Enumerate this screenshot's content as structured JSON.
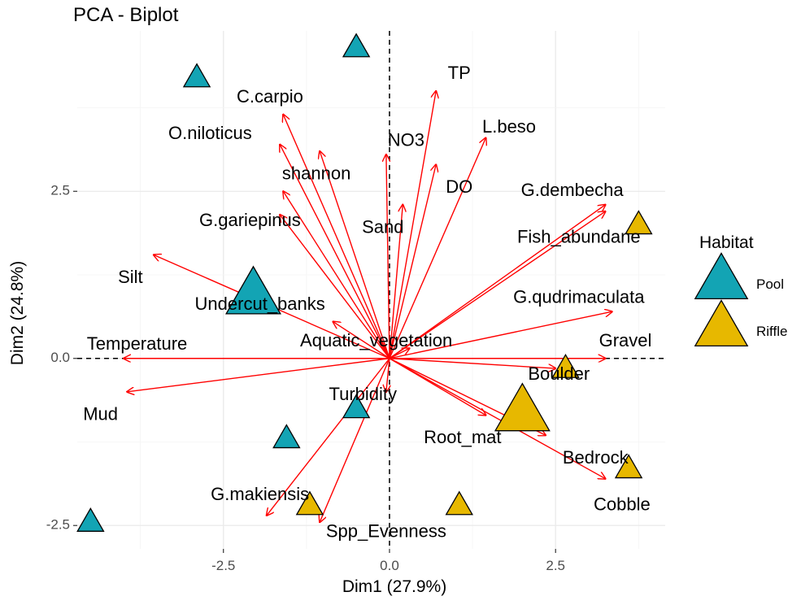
{
  "chart_data": {
    "type": "scatter",
    "title": "PCA - Biplot",
    "xlabel": "Dim1 (27.9%)",
    "ylabel": "Dim2 (24.8%)",
    "xlim": [
      -4.7,
      4.15
    ],
    "ylim": [
      -2.85,
      4.9
    ],
    "xticks": [
      -2.5,
      0.0,
      2.5
    ],
    "yticks": [
      -2.5,
      0.0,
      2.5
    ],
    "xtick_labels": [
      "-2.5",
      "0.0",
      "2.5"
    ],
    "ytick_labels": [
      "-2.5",
      "0.0",
      "2.5"
    ],
    "grid": true,
    "legend": {
      "title": "Habitat",
      "position": "right",
      "entries": [
        {
          "name": "Pool",
          "color": "#13A4B4"
        },
        {
          "name": "Riffle",
          "color": "#E7B800"
        }
      ]
    },
    "arrow_color": "#FF0000",
    "points": [
      {
        "x": -0.5,
        "y": 4.65,
        "group": "Pool"
      },
      {
        "x": -2.9,
        "y": 4.2,
        "group": "Pool"
      },
      {
        "x": -2.05,
        "y": 0.95,
        "group": "Pool",
        "centroid": true
      },
      {
        "x": -0.5,
        "y": -0.75,
        "group": "Pool"
      },
      {
        "x": -1.55,
        "y": -1.2,
        "group": "Pool"
      },
      {
        "x": -4.5,
        "y": -2.45,
        "group": "Pool"
      },
      {
        "x": 3.75,
        "y": 2.0,
        "group": "Riffle"
      },
      {
        "x": 2.65,
        "y": -0.15,
        "group": "Riffle"
      },
      {
        "x": 2.0,
        "y": -0.8,
        "group": "Riffle",
        "centroid": true
      },
      {
        "x": 3.6,
        "y": -1.65,
        "group": "Riffle"
      },
      {
        "x": 1.05,
        "y": -2.2,
        "group": "Riffle"
      },
      {
        "x": -1.2,
        "y": -2.2,
        "group": "Riffle"
      }
    ],
    "arrows": [
      {
        "x": 0.7,
        "y": 4.0,
        "label": "TP",
        "lx": 1.05,
        "ly": 4.25
      },
      {
        "x": -1.6,
        "y": 3.65,
        "label": "C.carpio",
        "lx": -1.8,
        "ly": 3.9
      },
      {
        "x": 1.45,
        "y": 3.3,
        "label": "L.beso",
        "lx": 1.8,
        "ly": 3.45
      },
      {
        "x": -1.65,
        "y": 3.2,
        "label": "O.niloticus",
        "lx": -2.7,
        "ly": 3.35
      },
      {
        "x": -1.05,
        "y": 3.1,
        "label": "",
        "lx": null,
        "ly": null
      },
      {
        "x": -0.05,
        "y": 3.05,
        "label": "NO3",
        "lx": 0.25,
        "ly": 3.25
      },
      {
        "x": 0.7,
        "y": 2.9,
        "label": "DO",
        "lx": 1.05,
        "ly": 2.55
      },
      {
        "x": -1.6,
        "y": 2.5,
        "label": "shannon",
        "lx": -1.1,
        "ly": 2.75
      },
      {
        "x": 0.2,
        "y": 2.3,
        "label": "Sand",
        "lx": -0.1,
        "ly": 1.95
      },
      {
        "x": 3.25,
        "y": 2.3,
        "label": "G.dembecha",
        "lx": 2.75,
        "ly": 2.5
      },
      {
        "x": 3.25,
        "y": 2.2,
        "label": "Fish_abundane",
        "lx": 2.85,
        "ly": 1.8
      },
      {
        "x": -1.65,
        "y": 2.15,
        "label": "G.gariepinus",
        "lx": -2.1,
        "ly": 2.05
      },
      {
        "x": -3.55,
        "y": 1.55,
        "label": "Silt",
        "lx": -3.9,
        "ly": 1.2
      },
      {
        "x": -0.85,
        "y": 0.55,
        "label": "Undercut_banks",
        "lx": -1.95,
        "ly": 0.8
      },
      {
        "x": 3.35,
        "y": 0.7,
        "label": "G.qudrimaculata",
        "lx": 2.85,
        "ly": 0.9
      },
      {
        "x": 0.3,
        "y": 0.15,
        "label": "Aquatic_vegetation",
        "lx": -0.2,
        "ly": 0.25
      },
      {
        "x": 3.25,
        "y": 0.0,
        "label": "Gravel",
        "lx": 3.55,
        "ly": 0.25
      },
      {
        "x": -4.0,
        "y": 0.0,
        "label": "Temperature",
        "lx": -3.8,
        "ly": 0.2
      },
      {
        "x": 2.5,
        "y": -0.15,
        "label": "Boulder",
        "lx": 2.55,
        "ly": -0.25
      },
      {
        "x": -0.05,
        "y": -0.5,
        "label": "Turbidity",
        "lx": -0.4,
        "ly": -0.55
      },
      {
        "x": -3.95,
        "y": -0.5,
        "label": "Mud",
        "lx": -4.35,
        "ly": -0.85
      },
      {
        "x": 2.35,
        "y": -1.15,
        "label": "Bedrock",
        "lx": 3.1,
        "ly": -1.5
      },
      {
        "x": 1.45,
        "y": -0.85,
        "label": "Root_mat",
        "lx": 1.1,
        "ly": -1.2
      },
      {
        "x": 3.25,
        "y": -1.8,
        "label": "Cobble",
        "lx": 3.5,
        "ly": -2.2
      },
      {
        "x": -1.85,
        "y": -2.35,
        "label": "G.makiensis",
        "lx": -1.95,
        "ly": -2.05
      },
      {
        "x": -1.05,
        "y": -2.45,
        "label": "Spp_Evenness",
        "lx": -0.05,
        "ly": -2.6
      }
    ]
  }
}
